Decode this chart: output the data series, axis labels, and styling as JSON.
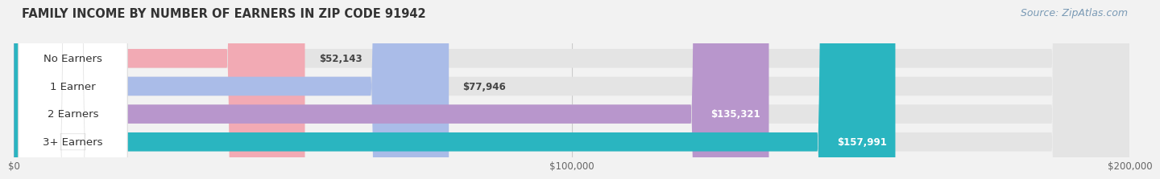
{
  "title": "FAMILY INCOME BY NUMBER OF EARNERS IN ZIP CODE 91942",
  "source": "Source: ZipAtlas.com",
  "categories": [
    "No Earners",
    "1 Earner",
    "2 Earners",
    "3+ Earners"
  ],
  "values": [
    52143,
    77946,
    135321,
    157991
  ],
  "labels": [
    "$52,143",
    "$77,946",
    "$135,321",
    "$157,991"
  ],
  "bar_colors": [
    "#f2aab4",
    "#aabce8",
    "#b896cc",
    "#2ab5c0"
  ],
  "label_inside": [
    false,
    false,
    true,
    true
  ],
  "bg_color": "#f2f2f2",
  "bar_bg_color": "#e4e4e4",
  "xlim": [
    0,
    200000
  ],
  "xticks": [
    0,
    100000,
    200000
  ],
  "xticklabels": [
    "$0",
    "$100,000",
    "$200,000"
  ],
  "title_fontsize": 10.5,
  "source_fontsize": 9,
  "label_fontsize": 8.5,
  "category_fontsize": 9.5
}
